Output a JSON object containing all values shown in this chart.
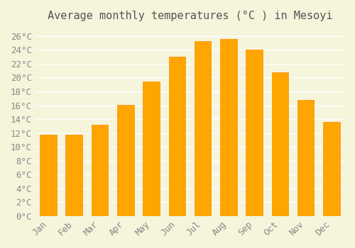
{
  "title": "Average monthly temperatures (°C ) in Mesoyi",
  "months": [
    "Jan",
    "Feb",
    "Mar",
    "Apr",
    "May",
    "Jun",
    "Jul",
    "Aug",
    "Sep",
    "Oct",
    "Nov",
    "Dec"
  ],
  "values": [
    11.8,
    11.8,
    13.2,
    16.1,
    19.4,
    23.0,
    25.3,
    25.6,
    24.0,
    20.8,
    16.8,
    13.6
  ],
  "bar_color": "#FFA500",
  "bar_edge_color": "#FF8C00",
  "background_color": "#F5F5DC",
  "grid_color": "#FFFFFF",
  "ylim": [
    0,
    27
  ],
  "yticks": [
    0,
    2,
    4,
    6,
    8,
    10,
    12,
    14,
    16,
    18,
    20,
    22,
    24,
    26
  ],
  "title_fontsize": 11,
  "tick_fontsize": 9,
  "title_color": "#555555",
  "tick_color": "#888888"
}
